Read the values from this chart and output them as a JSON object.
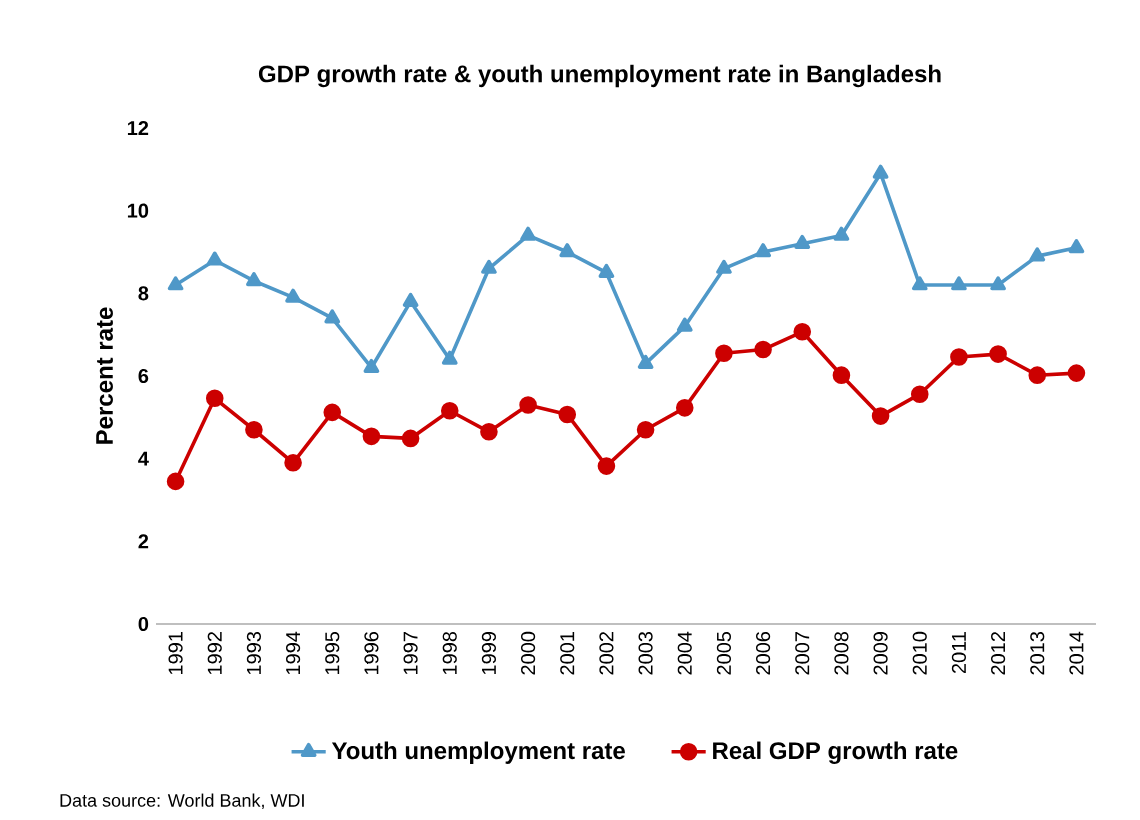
{
  "chart_data": {
    "type": "line",
    "title": "GDP growth rate & youth unemployment rate in Bangladesh",
    "ylabel": "Percent rate",
    "categories": [
      "1991",
      "1992",
      "1993",
      "1994",
      "1995",
      "1996",
      "1997",
      "1998",
      "1999",
      "2000",
      "2001",
      "2002",
      "2003",
      "2004",
      "2005",
      "2006",
      "2007",
      "2008",
      "2009",
      "2010",
      "2011",
      "2012",
      "2013",
      "2014"
    ],
    "series": [
      {
        "name": "Youth unemployment rate",
        "color": "#4f98c8",
        "marker": "triangle",
        "values": [
          8.2,
          8.8,
          8.3,
          7.9,
          7.4,
          6.2,
          7.8,
          6.4,
          8.6,
          9.4,
          9.0,
          8.5,
          6.3,
          7.2,
          8.6,
          9.0,
          9.2,
          9.4,
          10.9,
          8.2,
          8.2,
          8.2,
          8.9,
          9.1
        ]
      },
      {
        "name": "Real GDP growth rate",
        "color": "#cc0000",
        "marker": "circle",
        "values": [
          3.45,
          5.46,
          4.7,
          3.9,
          5.12,
          4.54,
          4.49,
          5.16,
          4.65,
          5.3,
          5.07,
          3.82,
          4.7,
          5.23,
          6.55,
          6.64,
          7.07,
          6.02,
          5.03,
          5.56,
          6.46,
          6.53,
          6.02,
          6.07
        ]
      }
    ],
    "ylim": [
      0,
      12
    ],
    "yticks": [
      0,
      2,
      4,
      6,
      8,
      10,
      12
    ],
    "grid": false,
    "legend": "bottom",
    "annotations": [
      "Data source: World Bank, WDI"
    ]
  }
}
